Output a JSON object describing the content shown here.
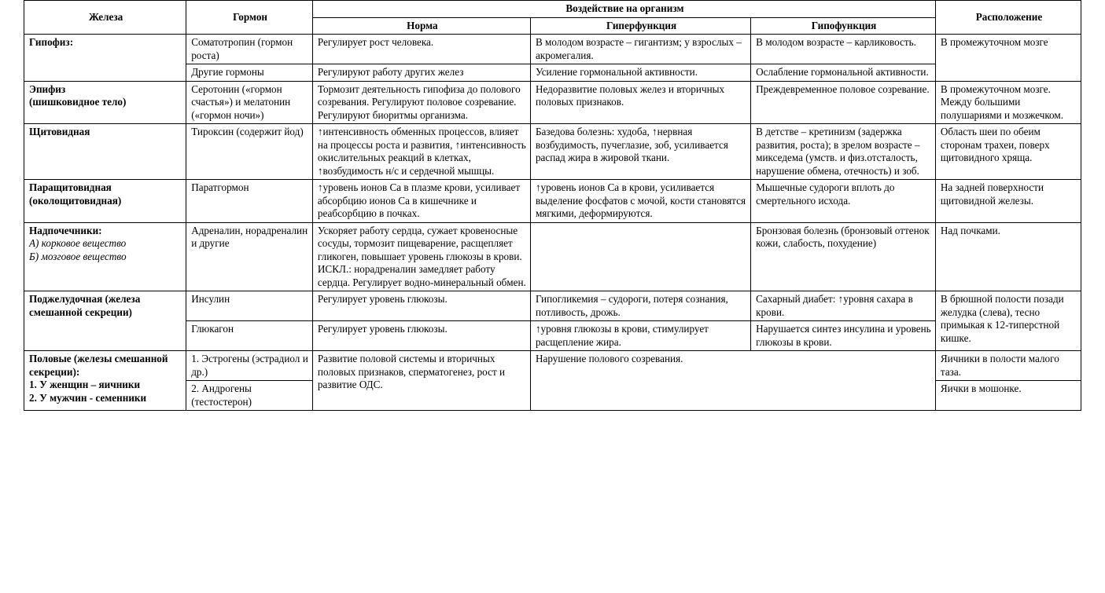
{
  "table": {
    "columns": [
      "c-gland",
      "c-hormone",
      "c-norm",
      "c-hyper",
      "c-hypo",
      "c-loc"
    ],
    "header": {
      "gland": "Железа",
      "hormone": "Гормон",
      "effects_group": "Воздействие на организм",
      "norm": "Норма",
      "hyper": "Гиперфункция",
      "hypo": "Гипофункция",
      "location": "Расположение"
    },
    "style": {
      "border_color": "#000000",
      "background_color": "#ffffff",
      "text_color": "#000000",
      "font_family": "Times New Roman",
      "base_font_size_pt": 10,
      "header_font_weight": "bold",
      "gland_font_weight": "bold",
      "adrenal_subtitle_font_style": "italic"
    },
    "rows": {
      "pituitary": {
        "gland": "Гипофиз:",
        "hormone1": "Соматотропин (гормон роста)",
        "norm1": "Регулирует рост человека.",
        "hyper1": "В молодом возрасте – гигантизм; у взрослых – акромегалия.",
        "hypo1": "В молодом возрасте – карликовость.",
        "hormone2": "Другие гормоны",
        "norm2": "Регулируют работу других желез",
        "hyper2": "Усиление гормональной активности.",
        "hypo2": "Ослабление гормональной активности.",
        "location": "В промежуточном мозге"
      },
      "pineal": {
        "gland": "Эпифиз\n (шишковидное тело)",
        "hormone": "Серотонин («гормон счастья») и мелатонин («гормон ночи»)",
        "norm": "Тормозит деятельность гипофиза до полового созревания. Регулируют половое созревание. Регулируют биоритмы организма.",
        "hyper": "Недоразвитие половых желез и вторичных половых признаков.",
        "hypo": "Преждевременное половое созревание.",
        "location": "В промежуточном мозге. Между большими полушариями и мозжечком."
      },
      "thyroid": {
        "gland": "Щитовидная",
        "hormone": "Тироксин (содержит йод)",
        "norm": "↑интенсивность обменных процессов, влияет на процессы роста и развития, ↑интенсивность окислительных реакций в клетках, ↑возбудимость н/с и сердечной мышцы.",
        "hyper": "Базедова болезнь: худоба, ↑нервная возбудимость, пучеглазие, зоб, усиливается распад жира в жировой ткани.",
        "hypo": "В детстве – кретинизм (задержка развития, роста); в зрелом возрасте – микседема (умств. и физ.отсталость, нарушение обмена, отечность) и зоб.",
        "location": "Область шеи по обеим сторонам трахеи, поверх щитовидного хряща."
      },
      "parathyroid": {
        "gland": "Паращитовидная (околощитовидная)",
        "hormone": "Паратгормон",
        "norm": "↑уровень ионов Ca в плазме крови, усиливает абсорбцию ионов Ca в кишечнике и реабсорбцию в почках.",
        "hyper": "↑уровень ионов Ca в крови, усиливается выделение фосфатов с мочой, кости становятся мягкими, деформируются.",
        "hypo": "Мышечные судороги вплоть до смертельного исхода.",
        "location": "На задней поверхности щитовидной железы."
      },
      "adrenal": {
        "gland_title": "Надпочечники:",
        "gland_sub_a": "А) корковое вещество",
        "gland_sub_b": "Б) мозговое вещество",
        "hormone": "Адреналин, норадреналин и другие",
        "norm": "Ускоряет работу сердца, сужает кровеносные сосуды, тормозит пищеварение, расщепляет гликоген, повышает уровень глюкозы в крови.\nИСКЛ.: норадреналин замедляет работу сердца. Регулирует водно-минеральный обмен.",
        "hyper": "",
        "hypo": "Бронзовая болезнь (бронзовый оттенок кожи, слабость, похудение)",
        "location": "Над почками."
      },
      "pancreas": {
        "gland": "Поджелудочная (железа смешанной секреции)",
        "hormone1": "Инсулин",
        "norm1": "Регулирует уровень глюкозы.",
        "hyper1": "Гипогликемия – судороги, потеря сознания, потливость, дрожь.",
        "hypo1": "Сахарный диабет: ↑уровня сахара в крови.",
        "hormone2": "Глюкагон",
        "norm2": "Регулирует уровень глюкозы.",
        "hyper2": "↑уровня глюкозы в крови, стимулирует расщепление жира.",
        "hypo2": "Нарушается синтез инсулина и уровень глюкозы в крови.",
        "location": "В брюшной полости позади  желудка (слева), тесно примыкая к 12-типерстной кишке."
      },
      "gonads": {
        "gland_title": "Половые  (железы смешанной секреции):",
        "gland_line1": "1. У женщин – яичники",
        "gland_line2": "2. У мужчин - семенники",
        "hormone1": "1. Эстрогены (эстрадиол и др.)",
        "hormone2": "2. Андрогены (тестостерон)",
        "norm": "Развитие половой системы и вторичных половых признаков, сперматогенез, рост и развитие ОДС.",
        "dysfunction_merged": "Нарушение полового созревания.",
        "location1": "Яичники в полости малого таза.",
        "location2": "Яички в мошонке."
      }
    }
  }
}
